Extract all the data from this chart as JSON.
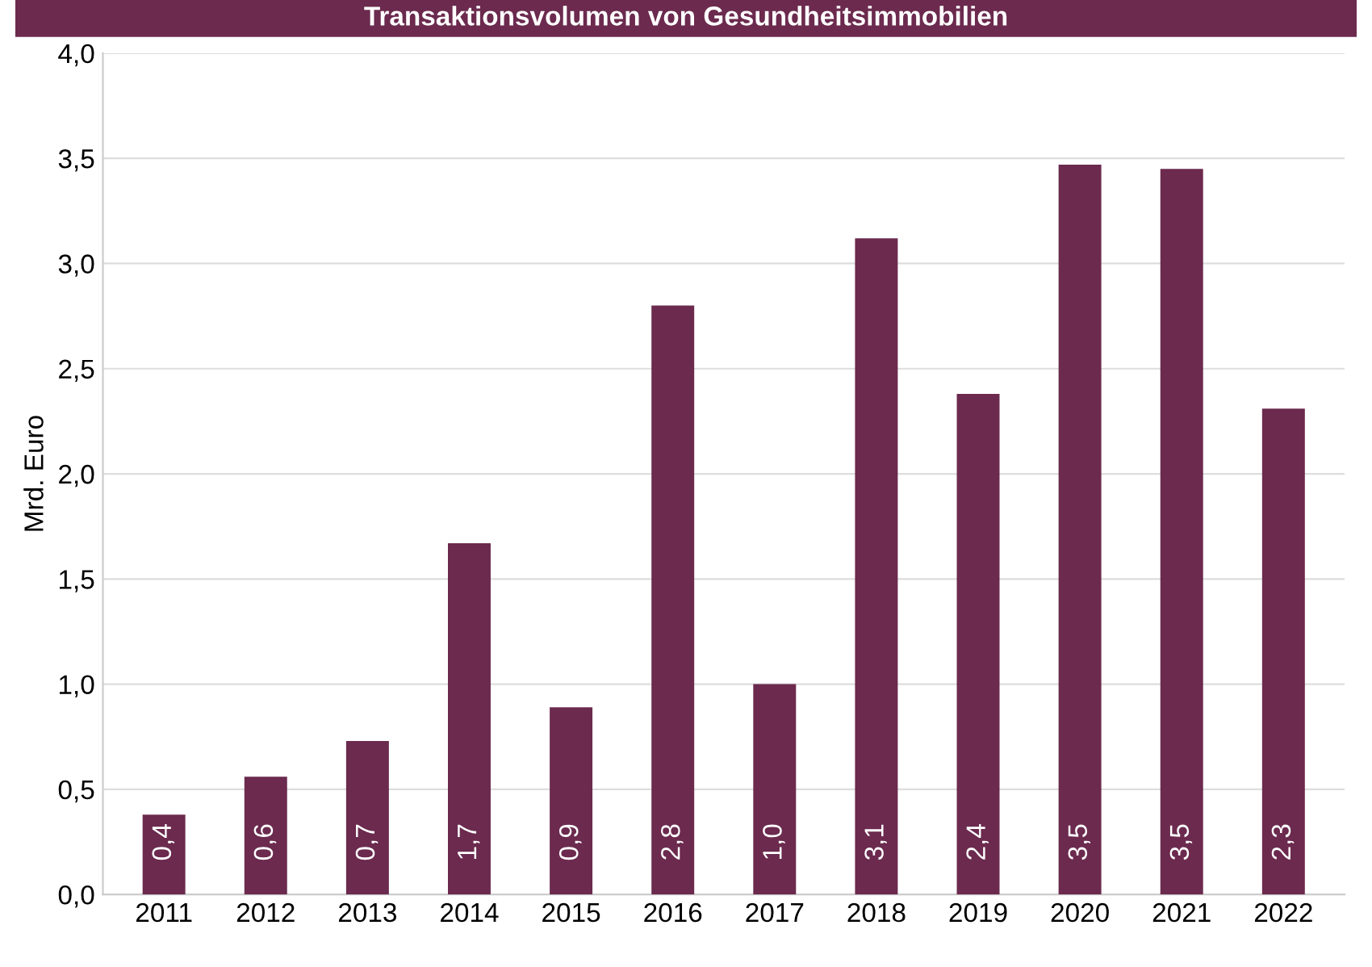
{
  "chart_data": {
    "type": "bar",
    "title": "Transaktionsvolumen von Gesundheitsimmobilien",
    "ylabel": "Mrd. Euro",
    "categories": [
      "2011",
      "2012",
      "2013",
      "2014",
      "2015",
      "2016",
      "2017",
      "2018",
      "2019",
      "2020",
      "2021",
      "2022"
    ],
    "values": [
      0.38,
      0.56,
      0.73,
      1.67,
      0.89,
      2.8,
      1.0,
      3.12,
      2.38,
      3.47,
      3.45,
      2.31
    ],
    "value_labels": [
      "0,4",
      "0,6",
      "0,7",
      "1,7",
      "0,9",
      "2,8",
      "1,0",
      "3,1",
      "2,4",
      "3,5",
      "3,5",
      "2,3"
    ],
    "color": "#6b2a4e",
    "ylim": [
      0,
      4
    ],
    "yticks": [
      {
        "value": 0,
        "label": "0,0"
      },
      {
        "value": 0.5,
        "label": "0,5"
      },
      {
        "value": 1,
        "label": "1,0"
      },
      {
        "value": 1.5,
        "label": "1,5"
      },
      {
        "value": 2,
        "label": "2,0"
      },
      {
        "value": 2.5,
        "label": "2,5"
      },
      {
        "value": 3,
        "label": "3,0"
      },
      {
        "value": 3.5,
        "label": "3,5"
      },
      {
        "value": 4,
        "label": "4,0"
      }
    ],
    "grid": "y",
    "legend": false
  }
}
